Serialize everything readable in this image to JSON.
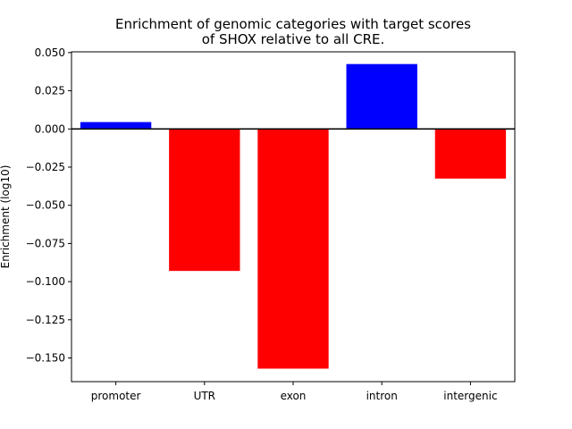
{
  "chart_data": {
    "type": "bar",
    "title_lines": [
      "Enrichment of genomic categories with target scores",
      "of SHOX relative to all CRE."
    ],
    "xlabel": "",
    "ylabel": "Enrichment (log10)",
    "categories": [
      "promoter",
      "UTR",
      "exon",
      "intron",
      "intergenic"
    ],
    "values": [
      0.0045,
      -0.093,
      -0.157,
      0.0425,
      -0.0325
    ],
    "colors": [
      "#0000ff",
      "#ff0000",
      "#ff0000",
      "#0000ff",
      "#ff0000"
    ],
    "ylim": [
      -0.1655,
      0.0505
    ],
    "yticks": [
      0.05,
      0.025,
      0.0,
      -0.025,
      -0.05,
      -0.075,
      -0.1,
      -0.125,
      -0.15
    ],
    "ytick_labels": [
      "0.050",
      "0.025",
      "0.000",
      "−0.025",
      "−0.050",
      "−0.075",
      "−0.100",
      "−0.125",
      "−0.150"
    ],
    "zero_line": true,
    "grid": false,
    "legend": "none"
  }
}
